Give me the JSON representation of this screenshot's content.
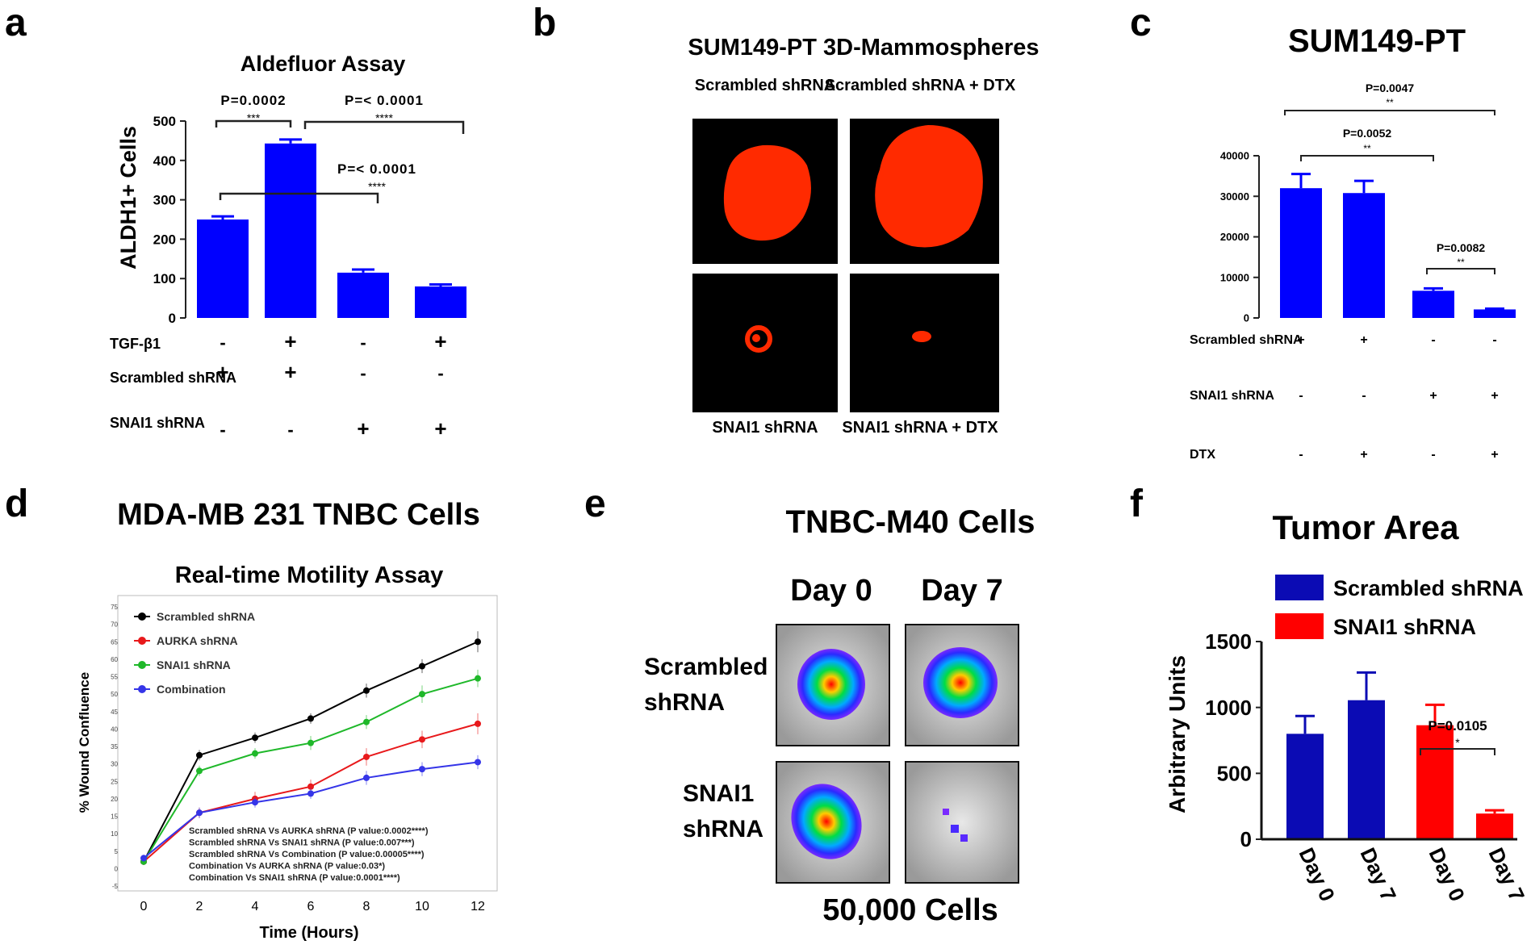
{
  "panel_letters": [
    "a",
    "b",
    "c",
    "d",
    "e",
    "f"
  ],
  "colors": {
    "blue": "#0000ff",
    "navy": "#0b0bb4",
    "red": "#ff0000",
    "black": "#000000",
    "dark": "#1e1e1e",
    "micro_red": "#ff2a00",
    "micro_bg": "#000000"
  },
  "chart_data": [
    {
      "id": "a",
      "type": "bar",
      "title": "Aldefluor Assay",
      "ylabel": "ALDH1+ Cells",
      "ylim": [
        0,
        500
      ],
      "yticks": [
        "0",
        "100",
        "200",
        "300",
        "400",
        "500"
      ],
      "values": [
        250,
        443,
        115,
        80
      ],
      "errors": [
        8,
        10,
        8,
        5
      ],
      "conditions": [
        {
          "label": "TGF-β1",
          "marks": [
            "-",
            "+",
            "-",
            "+"
          ]
        },
        {
          "label": "Scrambled shRNA",
          "marks": [
            "+",
            "+",
            "-",
            "-"
          ]
        },
        {
          "label": "SNAI1 shRNA",
          "marks": [
            "-",
            "-",
            "+",
            "+"
          ]
        }
      ],
      "comparisons": [
        {
          "p": "P=0.0002",
          "stars": "***"
        },
        {
          "p": "P=< 0.0001",
          "stars": "****"
        },
        {
          "p": "P=< 0.0001",
          "stars": "****"
        }
      ]
    },
    {
      "id": "c",
      "type": "bar",
      "title": "SUM149-PT",
      "ylim": [
        0,
        40000
      ],
      "yticks": [
        "0",
        "10000",
        "20000",
        "30000",
        "40000"
      ],
      "values": [
        32000,
        30800,
        6700,
        2100
      ],
      "errors": [
        3500,
        3000,
        600,
        200
      ],
      "conditions": [
        {
          "label": "Scrambled shRNA",
          "marks": [
            "+",
            "+",
            "-",
            "-"
          ]
        },
        {
          "label": "SNAI1 shRNA",
          "marks": [
            "-",
            "-",
            "+",
            "+"
          ]
        },
        {
          "label": "DTX",
          "marks": [
            "-",
            "+",
            "-",
            "+"
          ]
        }
      ],
      "comparisons": [
        {
          "p": "P=0.0047",
          "stars": "**"
        },
        {
          "p": "P=0.0052",
          "stars": "**"
        },
        {
          "p": "P=0.0082",
          "stars": "**"
        }
      ]
    },
    {
      "id": "d",
      "type": "line",
      "title": "MDA-MB 231 TNBC Cells",
      "subtitle": "Real-time Motility Assay",
      "xlabel": "Time (Hours)",
      "ylabel": "% Wound Confluence",
      "x": [
        0,
        2,
        4,
        6,
        8,
        10,
        12
      ],
      "xticks": [
        "0",
        "2",
        "4",
        "6",
        "8",
        "10",
        "12"
      ],
      "ylim": [
        -5,
        75
      ],
      "yticks": [
        "-5",
        "0",
        "5",
        "10",
        "15",
        "20",
        "25",
        "30",
        "35",
        "40",
        "45",
        "50",
        "55",
        "60",
        "65",
        "70",
        "75"
      ],
      "series": [
        {
          "name": "Scrambled shRNA",
          "color": "#000000",
          "values": [
            2,
            32.5,
            37.5,
            43,
            51,
            58,
            65
          ],
          "errors": [
            1,
            1.5,
            1.5,
            1.5,
            2,
            2,
            3
          ]
        },
        {
          "name": "AURKA shRNA",
          "color": "#e8191b",
          "values": [
            2,
            16,
            20,
            23.5,
            32,
            37,
            41.5
          ],
          "errors": [
            1,
            1.5,
            2,
            2,
            2.5,
            2.5,
            3
          ]
        },
        {
          "name": "SNAI1 shRNA",
          "color": "#1fb82a",
          "values": [
            2,
            28,
            33,
            36,
            42,
            50,
            54.5
          ],
          "errors": [
            1,
            1.5,
            1.5,
            2,
            2,
            2.5,
            2.5
          ]
        },
        {
          "name": "Combination",
          "color": "#3535e8",
          "values": [
            3,
            16,
            19,
            21.5,
            26,
            28.5,
            30.5
          ],
          "errors": [
            1,
            1.5,
            1.5,
            1.5,
            2,
            2,
            2
          ]
        }
      ],
      "annotations": [
        "Scrambled shRNA Vs AURKA shRNA (P value:0.0002****)",
        "Scrambled shRNA Vs SNAI1 shRNA (P value:0.007***)",
        "Scrambled shRNA Vs Combination (P value:0.00005****)",
        "Combination Vs AURKA shRNA (P value:0.03*)",
        "Combination Vs SNAI1 shRNA (P value:0.0001****)"
      ]
    },
    {
      "id": "f",
      "type": "bar",
      "title": "Tumor Area",
      "ylabel": "Arbitrary Units",
      "ylim": [
        0,
        1500
      ],
      "yticks": [
        "0",
        "500",
        "1000",
        "1500"
      ],
      "categories": [
        "Day 0",
        "Day 7",
        "Day 0",
        "Day 7"
      ],
      "values": [
        800,
        1055,
        865,
        195
      ],
      "errors": [
        135,
        210,
        155,
        25
      ],
      "colors": [
        "#0b0bb4",
        "#0b0bb4",
        "#ff0000",
        "#ff0000"
      ],
      "legend": [
        {
          "name": "Scrambled shRNA",
          "color": "#0b0bb4"
        },
        {
          "name": "SNAI1 shRNA",
          "color": "#ff0000"
        }
      ],
      "comparisons": [
        {
          "p": "P=0.0105",
          "stars": "*"
        }
      ]
    }
  ],
  "panel_b": {
    "title": "SUM149-PT 3D-Mammospheres",
    "labels": [
      "Scrambled shRNA",
      "Scrambled shRNA + DTX",
      "SNAI1 shRNA",
      "SNAI1 shRNA + DTX"
    ]
  },
  "panel_e": {
    "title": "TNBC-M40 Cells",
    "columns": [
      "Day 0",
      "Day 7"
    ],
    "rows": [
      "Scrambled shRNA",
      "SNAI1 shRNA"
    ],
    "footer": "50,000 Cells"
  }
}
